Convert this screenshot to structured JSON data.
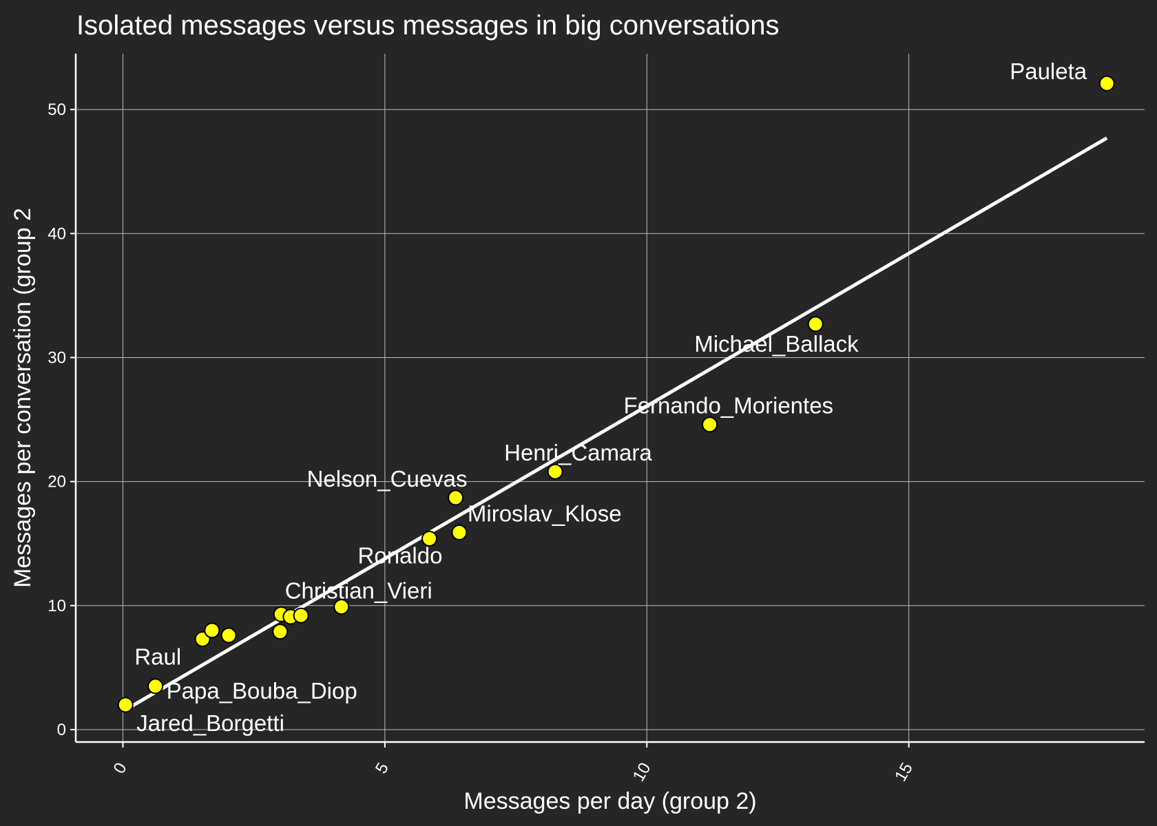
{
  "chart_data": {
    "type": "scatter",
    "title": "Isolated messages versus messages in big conversations",
    "xlabel": "Messages per day (group 2)",
    "ylabel": "Messages per conversation (group 2",
    "xlim": [
      -0.9,
      19.5
    ],
    "ylim": [
      -1.0,
      54.5
    ],
    "xticks": [
      0,
      5,
      10,
      15
    ],
    "yticks": [
      0,
      10,
      20,
      30,
      40,
      50
    ],
    "grid": true,
    "legend": "none",
    "colors": {
      "figure_background": "#262626",
      "panel_background": "#262626",
      "grid": "#bfbfbf",
      "axis_line": "#ffffff",
      "text": "#ffffff",
      "point_fill": "#ffff00",
      "point_stroke": "#000000",
      "fit_line": "#ffffff"
    },
    "points": [
      {
        "x": 0.05,
        "y": 2.0,
        "label": "Jared_Borgetti"
      },
      {
        "x": 0.62,
        "y": 3.5,
        "label": "Papa_Bouba_Diop"
      },
      {
        "x": 1.52,
        "y": 7.3,
        "label": ""
      },
      {
        "x": 1.7,
        "y": 8.0,
        "label": ""
      },
      {
        "x": 2.02,
        "y": 7.6,
        "label": ""
      },
      {
        "x": 3.0,
        "y": 7.9,
        "label": ""
      },
      {
        "x": 3.02,
        "y": 9.3,
        "label": ""
      },
      {
        "x": 3.2,
        "y": 9.1,
        "label": ""
      },
      {
        "x": 3.4,
        "y": 9.2,
        "label": ""
      },
      {
        "x": 4.17,
        "y": 9.9,
        "label": "Christian_Vieri"
      },
      {
        "x": 5.85,
        "y": 15.4,
        "label": "Ronaldo"
      },
      {
        "x": 6.35,
        "y": 18.7,
        "label": "Nelson_Cuevas"
      },
      {
        "x": 6.42,
        "y": 15.9,
        "label": "Miroslav_Klose"
      },
      {
        "x": 8.25,
        "y": 20.8,
        "label": "Henri_Camara"
      },
      {
        "x": 11.2,
        "y": 24.6,
        "label": "Fernando_Morientes"
      },
      {
        "x": 13.22,
        "y": 32.7,
        "label": "Michael_Ballack"
      },
      {
        "x": 18.78,
        "y": 52.1,
        "label": "Pauleta"
      }
    ],
    "extra_labels": [
      {
        "text": "Raul",
        "x": 0.8,
        "y": 5.9
      }
    ],
    "fit_line": {
      "x": [
        0.05,
        18.78
      ],
      "y": [
        1.6,
        47.7
      ]
    }
  }
}
